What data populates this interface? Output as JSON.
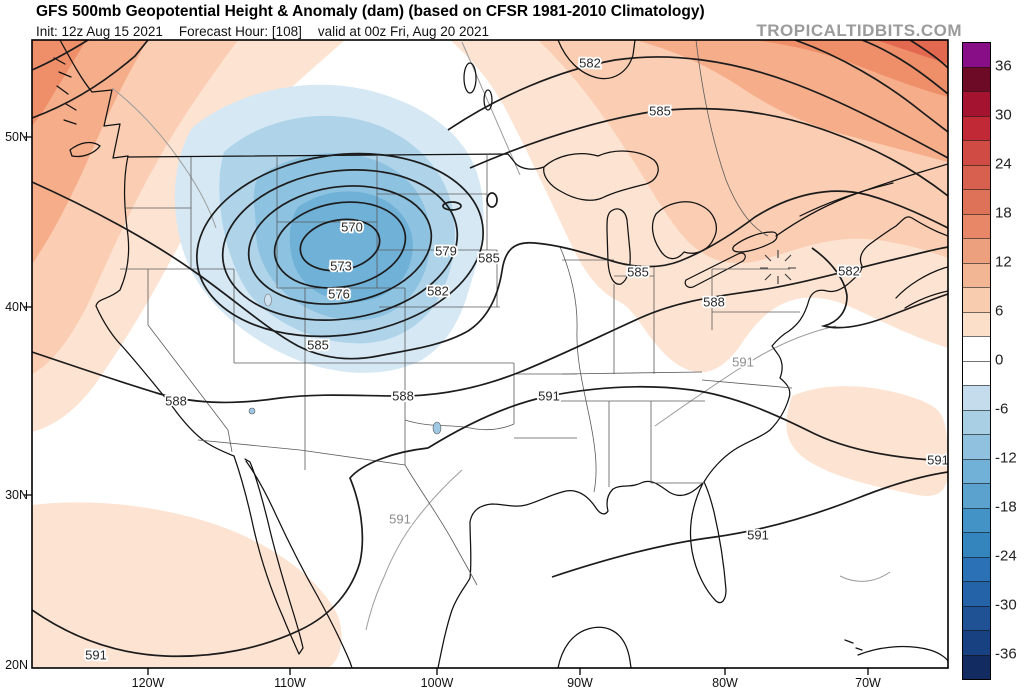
{
  "header": {
    "title": "GFS 500mb Geopotential Height & Anomaly (dam) (based on CFSR 1981-2010 Climatology)",
    "init": "Init: 12z Aug 15 2021",
    "forecast_hour": "Forecast Hour: [108]",
    "valid": "valid at 00z Fri, Aug 20 2021",
    "watermark": "TROPICALTIDBITS.COM"
  },
  "map": {
    "lat_labels": [
      "50N",
      "40N",
      "30N",
      "20N"
    ],
    "lon_labels": [
      "120W",
      "110W",
      "100W",
      "90W",
      "80W",
      "70W"
    ],
    "contour_labels": [
      {
        "text": "570"
      },
      {
        "text": "573"
      },
      {
        "text": "576"
      },
      {
        "text": "579"
      },
      {
        "text": "582"
      },
      {
        "text": "585"
      },
      {
        "text": "582"
      },
      {
        "text": "585"
      },
      {
        "text": "585"
      },
      {
        "text": "588"
      },
      {
        "text": "582"
      },
      {
        "text": "591"
      },
      {
        "text": "585"
      },
      {
        "text": "588"
      },
      {
        "text": "588"
      },
      {
        "text": "591"
      },
      {
        "text": "591"
      },
      {
        "text": "591"
      },
      {
        "text": "591"
      },
      {
        "text": "591"
      }
    ]
  },
  "colorbar": {
    "tick_labels": [
      "36",
      "30",
      "24",
      "18",
      "12",
      "6",
      "0",
      "-6",
      "-12",
      "-18",
      "-24",
      "-30",
      "-36"
    ],
    "cell_colors": [
      "#870e87",
      "#6d0b27",
      "#a41430",
      "#c22937",
      "#cf4b44",
      "#d7604f",
      "#de7259",
      "#e78767",
      "#eda07e",
      "#f3b694",
      "#f8ccae",
      "#fbdfc9",
      "#ffffff",
      "#ffffff",
      "#c4dcec",
      "#a9cfe5",
      "#90c1de",
      "#72b1d7",
      "#5ba3ce",
      "#4493c7",
      "#3484be",
      "#2a72b5",
      "#2463a8",
      "#1e5295",
      "#174180",
      "#122c62"
    ]
  }
}
